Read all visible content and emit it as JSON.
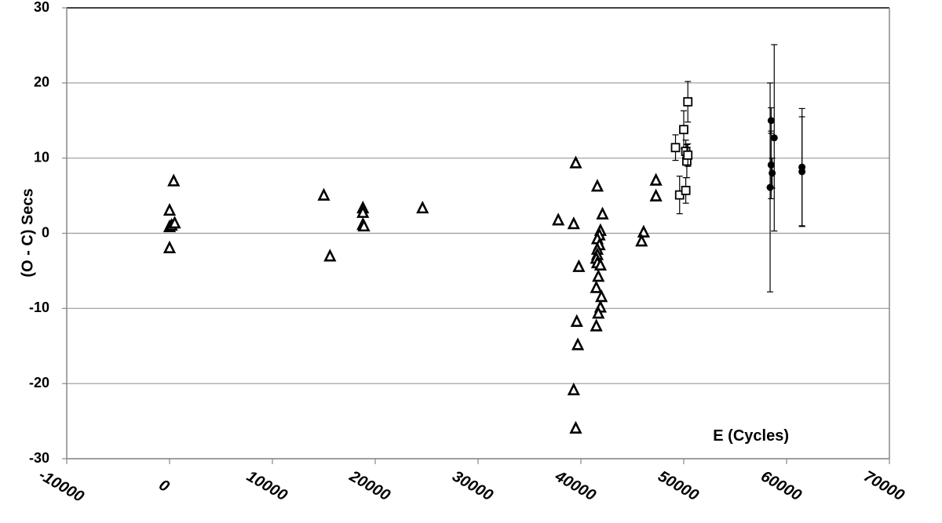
{
  "chart_data": {
    "type": "scatter",
    "xlabel": "E (Cycles)",
    "ylabel": "(O - C) Secs",
    "xlim": [
      -10000,
      70000
    ],
    "ylim": [
      -30,
      30
    ],
    "xticks": [
      -10000,
      0,
      10000,
      20000,
      30000,
      40000,
      50000,
      60000,
      70000
    ],
    "yticks": [
      -30,
      -20,
      -10,
      0,
      10,
      20,
      30
    ],
    "grid": true,
    "series": [
      {
        "marker": "triangle",
        "color": "#000000",
        "x": [
          0,
          0,
          0,
          200,
          400,
          500,
          15000,
          15600,
          18800,
          18800,
          18800,
          18900,
          24600,
          37800,
          39300,
          39500,
          39800,
          39600,
          39700,
          39300,
          39500,
          41600,
          42100,
          41900,
          41800,
          41600,
          41800,
          41600,
          41600,
          41500,
          41600,
          41900,
          41700,
          41500,
          42000,
          41900,
          41700,
          41500,
          46100,
          45900,
          47300,
          47300
        ],
        "values": [
          3,
          -2,
          0.8,
          1.0,
          6.9,
          1.3,
          5,
          -3.1,
          3.3,
          2.7,
          1.1,
          0.9,
          3.3,
          1.7,
          1.2,
          9.3,
          -4.5,
          -11.8,
          -14.9,
          -20.9,
          -26,
          6.2,
          2.5,
          0.3,
          -0.3,
          -0.8,
          -1.6,
          -2.2,
          -2.9,
          -3.4,
          -4.0,
          -4.3,
          -5.8,
          -7.3,
          -8.5,
          -9.9,
          -10.7,
          -12.4,
          0.1,
          -1.1,
          7.0,
          4.9
        ]
      },
      {
        "marker": "square",
        "color": "#000000",
        "x": [
          49200,
          49600,
          50000,
          50400,
          50200,
          50300,
          50200,
          50400
        ],
        "values": [
          11.4,
          5.1,
          13.8,
          17.5,
          10.9,
          9.6,
          5.7,
          10.4
        ],
        "errors": [
          1.7,
          2.5,
          2.5,
          2.7,
          1.5,
          2.2,
          1.7,
          1.5
        ]
      },
      {
        "marker": "circle",
        "color": "#000000",
        "x": [
          58500,
          58500,
          58400,
          58600,
          58800,
          61500,
          61500
        ],
        "values": [
          15.0,
          9.1,
          6.1,
          8.0,
          12.7,
          8.8,
          8.2
        ],
        "errors": [
          1.7,
          4.5,
          13.9,
          2.0,
          12.4,
          7.8,
          7.3
        ]
      }
    ]
  }
}
